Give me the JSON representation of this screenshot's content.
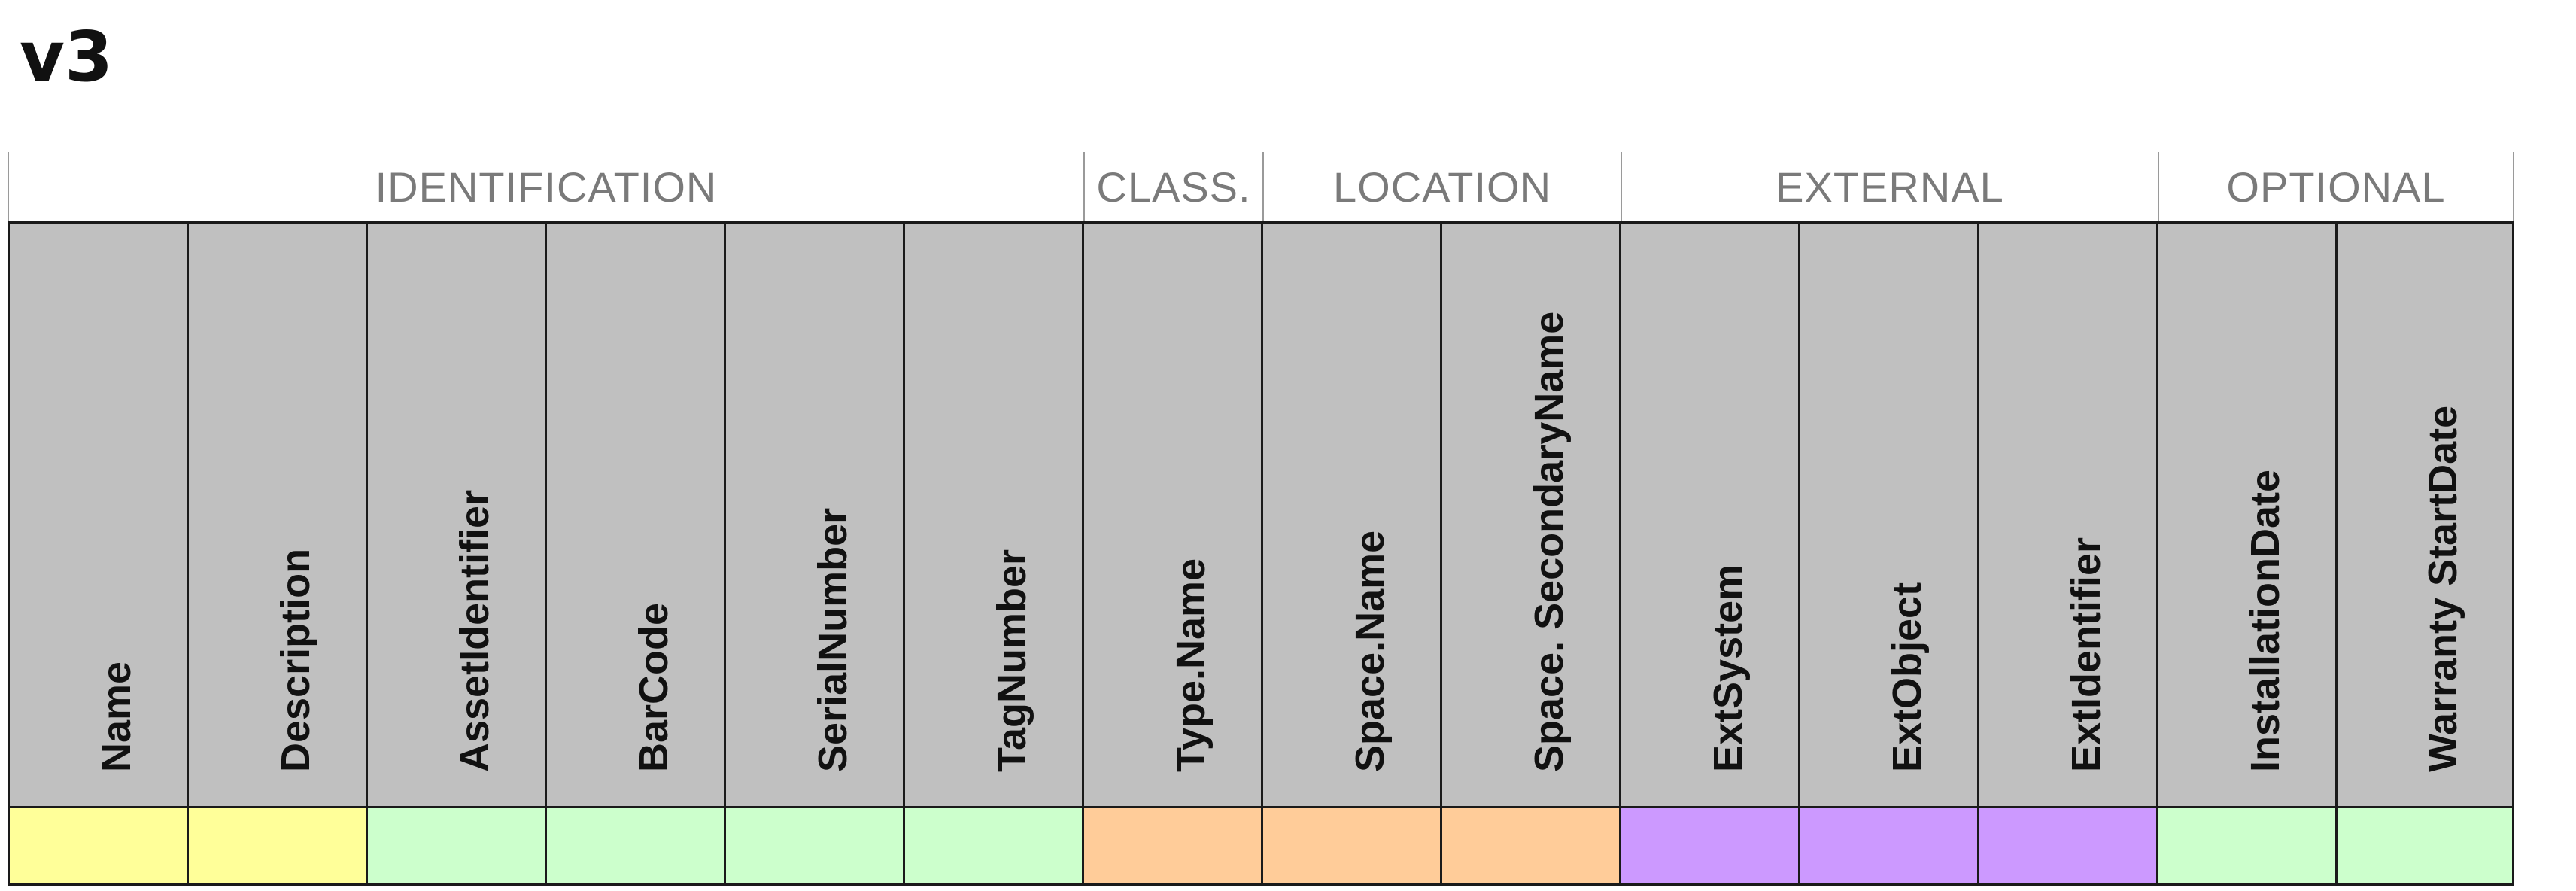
{
  "title": "v3",
  "groups": [
    {
      "label": "IDENTIFICATION"
    },
    {
      "label": "CLASS."
    },
    {
      "label": "LOCATION"
    },
    {
      "label": "EXTERNAL"
    },
    {
      "label": "OPTIONAL"
    }
  ],
  "columns": [
    {
      "label": "Name",
      "group": "IDENTIFICATION",
      "color": "#ffff99"
    },
    {
      "label": "Description",
      "group": "IDENTIFICATION",
      "color": "#ffff99"
    },
    {
      "label": "AssetIdentifier",
      "group": "IDENTIFICATION",
      "color": "#ccffcc"
    },
    {
      "label": "BarCode",
      "group": "IDENTIFICATION",
      "color": "#ccffcc"
    },
    {
      "label": "SerialNumber",
      "group": "IDENTIFICATION",
      "color": "#ccffcc"
    },
    {
      "label": "TagNumber",
      "group": "IDENTIFICATION",
      "color": "#ccffcc"
    },
    {
      "label": "Type.Name",
      "group": "CLASS.",
      "color": "#ffcc99"
    },
    {
      "label": "Space.Name",
      "group": "LOCATION",
      "color": "#ffcc99"
    },
    {
      "label": "Space. SecondaryName",
      "group": "LOCATION",
      "color": "#ffcc99"
    },
    {
      "label": "ExtSystem",
      "group": "EXTERNAL",
      "color": "#cc99ff"
    },
    {
      "label": "ExtObject",
      "group": "EXTERNAL",
      "color": "#cc99ff"
    },
    {
      "label": "ExtIdentifier",
      "group": "EXTERNAL",
      "color": "#cc99ff"
    },
    {
      "label": "InstallationDate",
      "group": "OPTIONAL",
      "color": "#ccffcc"
    },
    {
      "label": "Warranty StartDate",
      "group": "OPTIONAL",
      "color": "#ccffcc"
    }
  ],
  "colors": {
    "header_fill": "#c0c0c0",
    "required": "#ffff99",
    "optional_green": "#ccffcc",
    "classification_location": "#ffcc99",
    "external": "#cc99ff"
  }
}
